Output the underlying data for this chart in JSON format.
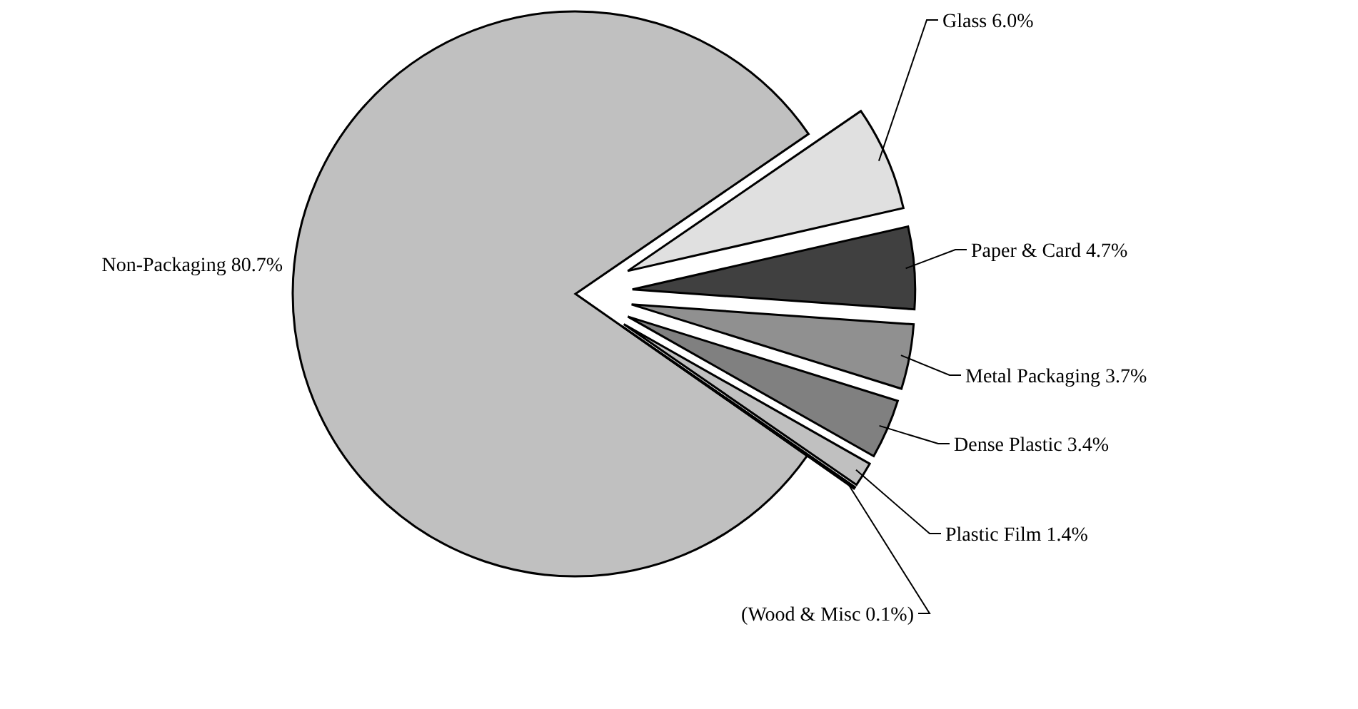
{
  "chart_data": {
    "type": "pie",
    "categories": [
      "Non-Packaging",
      "Glass",
      "Paper & Card",
      "Metal Packaging",
      "Dense Plastic",
      "Plastic Film",
      "(Wood & Misc"
    ],
    "values": [
      80.7,
      6.0,
      4.7,
      3.7,
      3.4,
      1.4,
      0.1
    ],
    "colors": [
      "#c0c0c0",
      "#e0e0e0",
      "#404040",
      "#909090",
      "#808080",
      "#c0c0c0",
      "#ffffff"
    ],
    "value_labels": [
      "80.7%",
      "6.0%",
      "4.7%",
      "3.7%",
      "3.4%",
      "1.4%",
      "0.1%)"
    ]
  }
}
